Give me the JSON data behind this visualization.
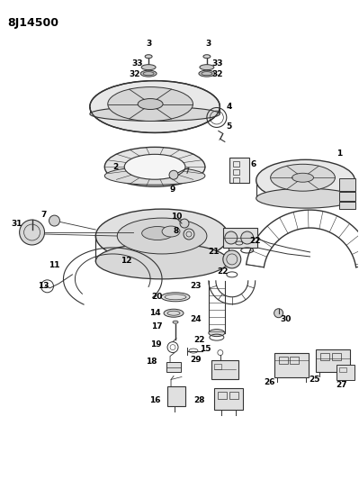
{
  "title": "8J14500",
  "bg_color": "#ffffff",
  "line_color": "#333333",
  "label_color": "#000000",
  "label_fontsize": 6.5,
  "figsize": [
    3.99,
    5.33
  ],
  "dpi": 100
}
